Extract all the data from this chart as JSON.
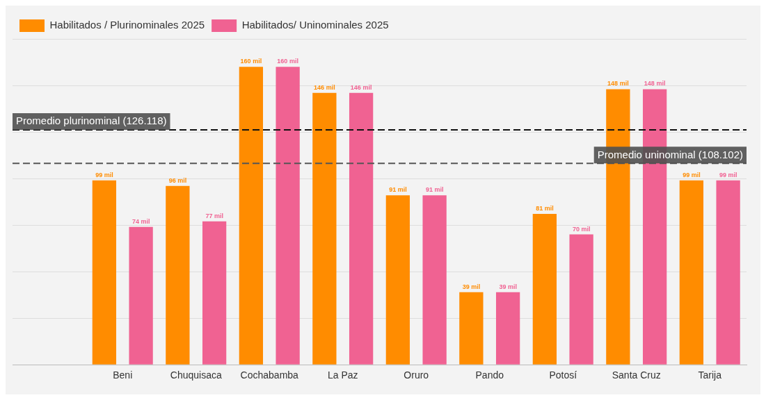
{
  "chart_data": {
    "type": "bar",
    "categories": [
      null,
      "Beni",
      "Chuquisaca",
      "Cochabamba",
      "La Paz",
      "Oruro",
      "Pando",
      "Potosí",
      "Santa Cruz",
      "Tarija"
    ],
    "series": [
      {
        "name": "Habilitados / Plurinominales 2025",
        "color": "#ff8c00",
        "values": [
          null,
          99,
          96,
          160,
          146,
          91,
          39,
          81,
          148,
          99
        ],
        "value_labels": [
          null,
          "99 mil",
          "96 mil",
          "160 mil",
          "146 mil",
          "91 mil",
          "39 mil",
          "81 mil",
          "148 mil",
          "99 mil"
        ]
      },
      {
        "name": "Habilitados/ Uninominales 2025",
        "color": "#f06292",
        "values": [
          null,
          74,
          77,
          160,
          146,
          91,
          39,
          70,
          148,
          99
        ],
        "value_labels": [
          null,
          "74 mil",
          "77 mil",
          "160 mil",
          "146 mil",
          "91 mil",
          "39 mil",
          "70 mil",
          "148 mil",
          "99 mil"
        ]
      }
    ],
    "ylim": [
      0,
      175
    ],
    "yticks": [
      {
        "value": 0,
        "label": null
      },
      {
        "value": 25,
        "label": null
      },
      {
        "value": 50,
        "label": null
      },
      {
        "value": 75,
        "label": null
      },
      {
        "value": 100,
        "label": null
      },
      {
        "value": 125,
        "label": null
      },
      {
        "value": 150,
        "label": null
      },
      {
        "value": 175,
        "label": null
      }
    ],
    "tick_labels": "x",
    "grid": "y",
    "legend": "top left",
    "ref_lines": [
      {
        "axis": "y",
        "value": 126.118,
        "label": "Promedio plurinominal (126.118)",
        "color": "#111111",
        "line_style": "dashed"
      },
      {
        "axis": "y",
        "value": 108.102,
        "label": "Promedio uninominal (108.102)",
        "color": "#555555",
        "line_style": "dashed"
      }
    ]
  }
}
